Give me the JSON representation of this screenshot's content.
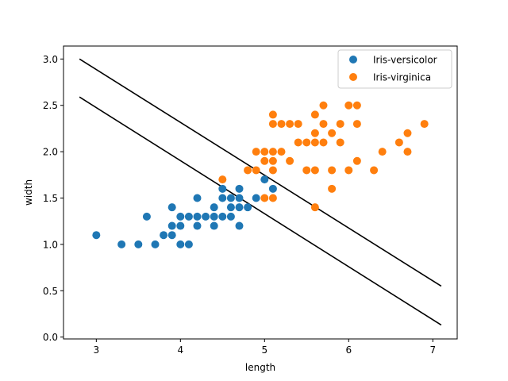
{
  "chart_data": {
    "type": "scatter",
    "title": "",
    "xlabel": "length",
    "ylabel": "width",
    "xlim": [
      2.61,
      7.29
    ],
    "ylim": [
      -0.02,
      3.14
    ],
    "xticks": [
      3,
      4,
      5,
      6,
      7
    ],
    "yticks": [
      0.0,
      0.5,
      1.0,
      1.5,
      2.0,
      2.5,
      3.0
    ],
    "xtick_labels": [
      "3",
      "4",
      "5",
      "6",
      "7"
    ],
    "ytick_labels": [
      "0.0",
      "0.5",
      "1.0",
      "1.5",
      "2.0",
      "2.5",
      "3.0"
    ],
    "grid": false,
    "legend_position": "top-right",
    "series": [
      {
        "name": "Iris-versicolor",
        "color": "#1f77b4",
        "points": [
          [
            3.0,
            1.1
          ],
          [
            3.3,
            1.0
          ],
          [
            3.5,
            1.0
          ],
          [
            3.6,
            1.3
          ],
          [
            3.7,
            1.0
          ],
          [
            3.8,
            1.1
          ],
          [
            3.9,
            1.1
          ],
          [
            3.9,
            1.2
          ],
          [
            3.9,
            1.4
          ],
          [
            4.0,
            1.0
          ],
          [
            4.0,
            1.2
          ],
          [
            4.0,
            1.3
          ],
          [
            4.1,
            1.0
          ],
          [
            4.1,
            1.3
          ],
          [
            4.2,
            1.2
          ],
          [
            4.2,
            1.3
          ],
          [
            4.2,
            1.5
          ],
          [
            4.3,
            1.3
          ],
          [
            4.4,
            1.2
          ],
          [
            4.4,
            1.3
          ],
          [
            4.4,
            1.4
          ],
          [
            4.5,
            1.3
          ],
          [
            4.5,
            1.5
          ],
          [
            4.5,
            1.6
          ],
          [
            4.6,
            1.3
          ],
          [
            4.6,
            1.4
          ],
          [
            4.6,
            1.5
          ],
          [
            4.7,
            1.2
          ],
          [
            4.7,
            1.4
          ],
          [
            4.7,
            1.5
          ],
          [
            4.7,
            1.6
          ],
          [
            4.8,
            1.4
          ],
          [
            4.9,
            1.5
          ],
          [
            5.0,
            1.7
          ],
          [
            5.1,
            1.6
          ]
        ]
      },
      {
        "name": "Iris-virginica",
        "color": "#ff7f0e",
        "points": [
          [
            4.5,
            1.7
          ],
          [
            4.8,
            1.8
          ],
          [
            4.9,
            1.8
          ],
          [
            4.9,
            2.0
          ],
          [
            5.0,
            1.5
          ],
          [
            5.0,
            1.9
          ],
          [
            5.0,
            2.0
          ],
          [
            5.1,
            1.5
          ],
          [
            5.1,
            1.8
          ],
          [
            5.1,
            1.9
          ],
          [
            5.1,
            2.0
          ],
          [
            5.1,
            2.3
          ],
          [
            5.1,
            2.4
          ],
          [
            5.2,
            2.0
          ],
          [
            5.2,
            2.3
          ],
          [
            5.3,
            1.9
          ],
          [
            5.3,
            2.3
          ],
          [
            5.4,
            2.1
          ],
          [
            5.4,
            2.3
          ],
          [
            5.5,
            1.8
          ],
          [
            5.5,
            2.1
          ],
          [
            5.6,
            1.4
          ],
          [
            5.6,
            1.8
          ],
          [
            5.6,
            2.1
          ],
          [
            5.6,
            2.2
          ],
          [
            5.6,
            2.4
          ],
          [
            5.7,
            2.1
          ],
          [
            5.7,
            2.3
          ],
          [
            5.7,
            2.5
          ],
          [
            5.8,
            1.6
          ],
          [
            5.8,
            1.8
          ],
          [
            5.8,
            2.2
          ],
          [
            5.9,
            2.1
          ],
          [
            5.9,
            2.3
          ],
          [
            6.0,
            1.8
          ],
          [
            6.0,
            2.5
          ],
          [
            6.1,
            1.9
          ],
          [
            6.1,
            2.3
          ],
          [
            6.1,
            2.5
          ],
          [
            6.3,
            1.8
          ],
          [
            6.4,
            2.0
          ],
          [
            6.6,
            2.1
          ],
          [
            6.7,
            2.0
          ],
          [
            6.7,
            2.2
          ],
          [
            6.9,
            2.3
          ]
        ]
      }
    ],
    "lines": [
      {
        "color": "#000000",
        "points": [
          [
            2.8,
            3.0
          ],
          [
            7.1,
            0.55
          ]
        ]
      },
      {
        "color": "#000000",
        "points": [
          [
            2.8,
            2.59
          ],
          [
            7.1,
            0.13
          ]
        ]
      }
    ]
  }
}
